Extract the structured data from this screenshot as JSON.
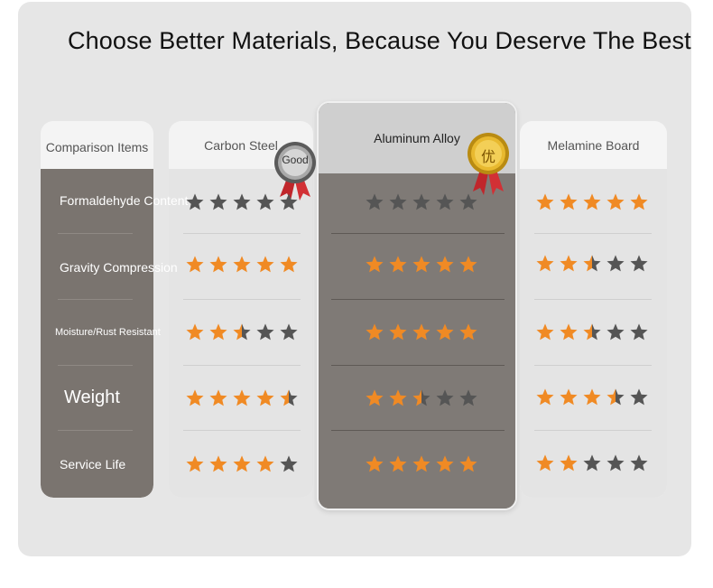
{
  "headline": "Choose Better Materials, Because You Deserve The Best",
  "columns": {
    "items": "Comparison Items",
    "carbon_steel": "Carbon Steel",
    "aluminum": "Aluminum Alloy",
    "melamine": "Melamine Board"
  },
  "badges": {
    "carbon_steel": "Good",
    "aluminum": "优"
  },
  "rows": [
    {
      "label": "Formaldehyde Content",
      "carbon_steel": 0,
      "aluminum": 0,
      "melamine": 5
    },
    {
      "label": "Gravity Compression",
      "carbon_steel": 5,
      "aluminum": 5,
      "melamine": 2.5
    },
    {
      "label": "Moisture/Rust Resistant",
      "carbon_steel": 2.5,
      "aluminum": 5,
      "melamine": 2.5
    },
    {
      "label": "Weight",
      "carbon_steel": 4.5,
      "aluminum": 2.5,
      "melamine": 3.5
    },
    {
      "label": "Service Life",
      "carbon_steel": 4,
      "aluminum": 5,
      "melamine": 2
    }
  ],
  "colors": {
    "star_filled": "#f08a24",
    "star_empty": "#555555"
  }
}
